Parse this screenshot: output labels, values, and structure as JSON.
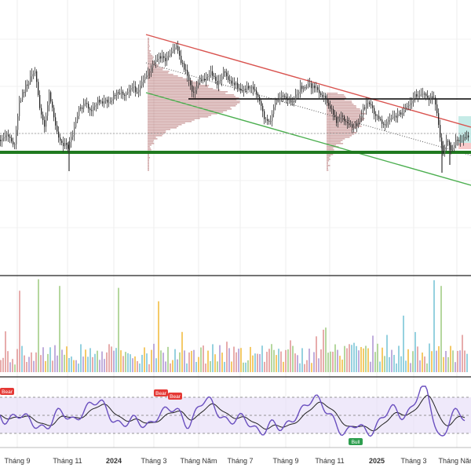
{
  "chart_data": [
    {
      "panel": "price",
      "type": "candlestick",
      "title": "",
      "x_tick_labels": [
        "Tháng 9",
        "Tháng 11",
        "2024",
        "Tháng 3",
        "Tháng Năm",
        "Tháng 7",
        "Tháng 9",
        "Tháng 11",
        "2025",
        "Tháng 3",
        "Tháng Năm"
      ],
      "y_axis_visible": false,
      "grid": true,
      "close_path": [
        [
          0,
          178
        ],
        [
          10,
          172
        ],
        [
          18,
          186
        ],
        [
          24,
          130
        ],
        [
          32,
          110
        ],
        [
          38,
          100
        ],
        [
          44,
          88
        ],
        [
          50,
          140
        ],
        [
          56,
          160
        ],
        [
          62,
          120
        ],
        [
          68,
          150
        ],
        [
          76,
          180
        ],
        [
          86,
          188
        ],
        [
          92,
          172
        ],
        [
          100,
          140
        ],
        [
          108,
          132
        ],
        [
          116,
          142
        ],
        [
          124,
          128
        ],
        [
          132,
          130
        ],
        [
          142,
          126
        ],
        [
          150,
          116
        ],
        [
          158,
          120
        ],
        [
          166,
          110
        ],
        [
          174,
          116
        ],
        [
          182,
          104
        ],
        [
          188,
          92
        ],
        [
          196,
          80
        ],
        [
          204,
          72
        ],
        [
          210,
          76
        ],
        [
          218,
          68
        ],
        [
          224,
          58
        ],
        [
          230,
          78
        ],
        [
          238,
          96
        ],
        [
          246,
          120
        ],
        [
          252,
          104
        ],
        [
          260,
          100
        ],
        [
          268,
          92
        ],
        [
          276,
          108
        ],
        [
          284,
          92
        ],
        [
          292,
          104
        ],
        [
          300,
          108
        ],
        [
          308,
          116
        ],
        [
          316,
          110
        ],
        [
          322,
          112
        ],
        [
          330,
          130
        ],
        [
          336,
          150
        ],
        [
          342,
          158
        ],
        [
          350,
          132
        ],
        [
          358,
          120
        ],
        [
          366,
          130
        ],
        [
          374,
          126
        ],
        [
          382,
          112
        ],
        [
          390,
          108
        ],
        [
          398,
          110
        ],
        [
          406,
          116
        ],
        [
          414,
          126
        ],
        [
          422,
          140
        ],
        [
          428,
          154
        ],
        [
          434,
          146
        ],
        [
          440,
          158
        ],
        [
          448,
          162
        ],
        [
          456,
          158
        ],
        [
          462,
          138
        ],
        [
          468,
          130
        ],
        [
          474,
          140
        ],
        [
          480,
          150
        ],
        [
          488,
          158
        ],
        [
          496,
          152
        ],
        [
          504,
          148
        ],
        [
          512,
          142
        ],
        [
          520,
          136
        ],
        [
          528,
          122
        ],
        [
          536,
          118
        ],
        [
          544,
          124
        ],
        [
          552,
          126
        ],
        [
          556,
          146
        ],
        [
          560,
          176
        ],
        [
          564,
          198
        ],
        [
          568,
          178
        ],
        [
          574,
          188
        ],
        [
          580,
          180
        ],
        [
          588,
          178
        ],
        [
          594,
          174
        ]
      ],
      "horizontal_lines": [
        {
          "kind": "support",
          "color": "#1f7a1f"
        },
        {
          "kind": "resistance",
          "color": "#000000"
        }
      ],
      "trendlines": [
        {
          "kind": "descending-resistance",
          "color": "#d9534f"
        },
        {
          "kind": "descending-support",
          "color": "#4caf50"
        },
        {
          "kind": "midline",
          "color": "#555555",
          "style": "dotted"
        }
      ],
      "volume_profiles": 2,
      "highlight_box": {
        "color": "#7fd3c9"
      }
    },
    {
      "panel": "volume",
      "type": "bar",
      "series_colors": [
        "#82c9d9",
        "#f2c14e",
        "#b59fd6",
        "#a8d08d",
        "#e39e9e"
      ],
      "peaks": [
        {
          "x": 24,
          "rel": 0.85
        },
        {
          "x": 48,
          "rel": 0.97
        },
        {
          "x": 74,
          "rel": 0.9
        },
        {
          "x": 150,
          "rel": 0.88
        },
        {
          "x": 202,
          "rel": 0.74
        },
        {
          "x": 552,
          "rel": 0.96
        },
        {
          "x": 560,
          "rel": 0.9
        }
      ]
    },
    {
      "panel": "rsi",
      "type": "line",
      "series": [
        {
          "name": "",
          "color": "#6a4fbf"
        },
        {
          "name": "",
          "color": "#222222"
        }
      ],
      "levels_dashed": 3,
      "band_color": "#e8e0f8",
      "signals": [
        {
          "label": "Bear",
          "color": "#e53935"
        },
        {
          "label": "Bear",
          "color": "#e53935"
        },
        {
          "label": "Bear",
          "color": "#e53935"
        },
        {
          "label": "Bull",
          "color": "#2e9e4f"
        }
      ]
    }
  ]
}
